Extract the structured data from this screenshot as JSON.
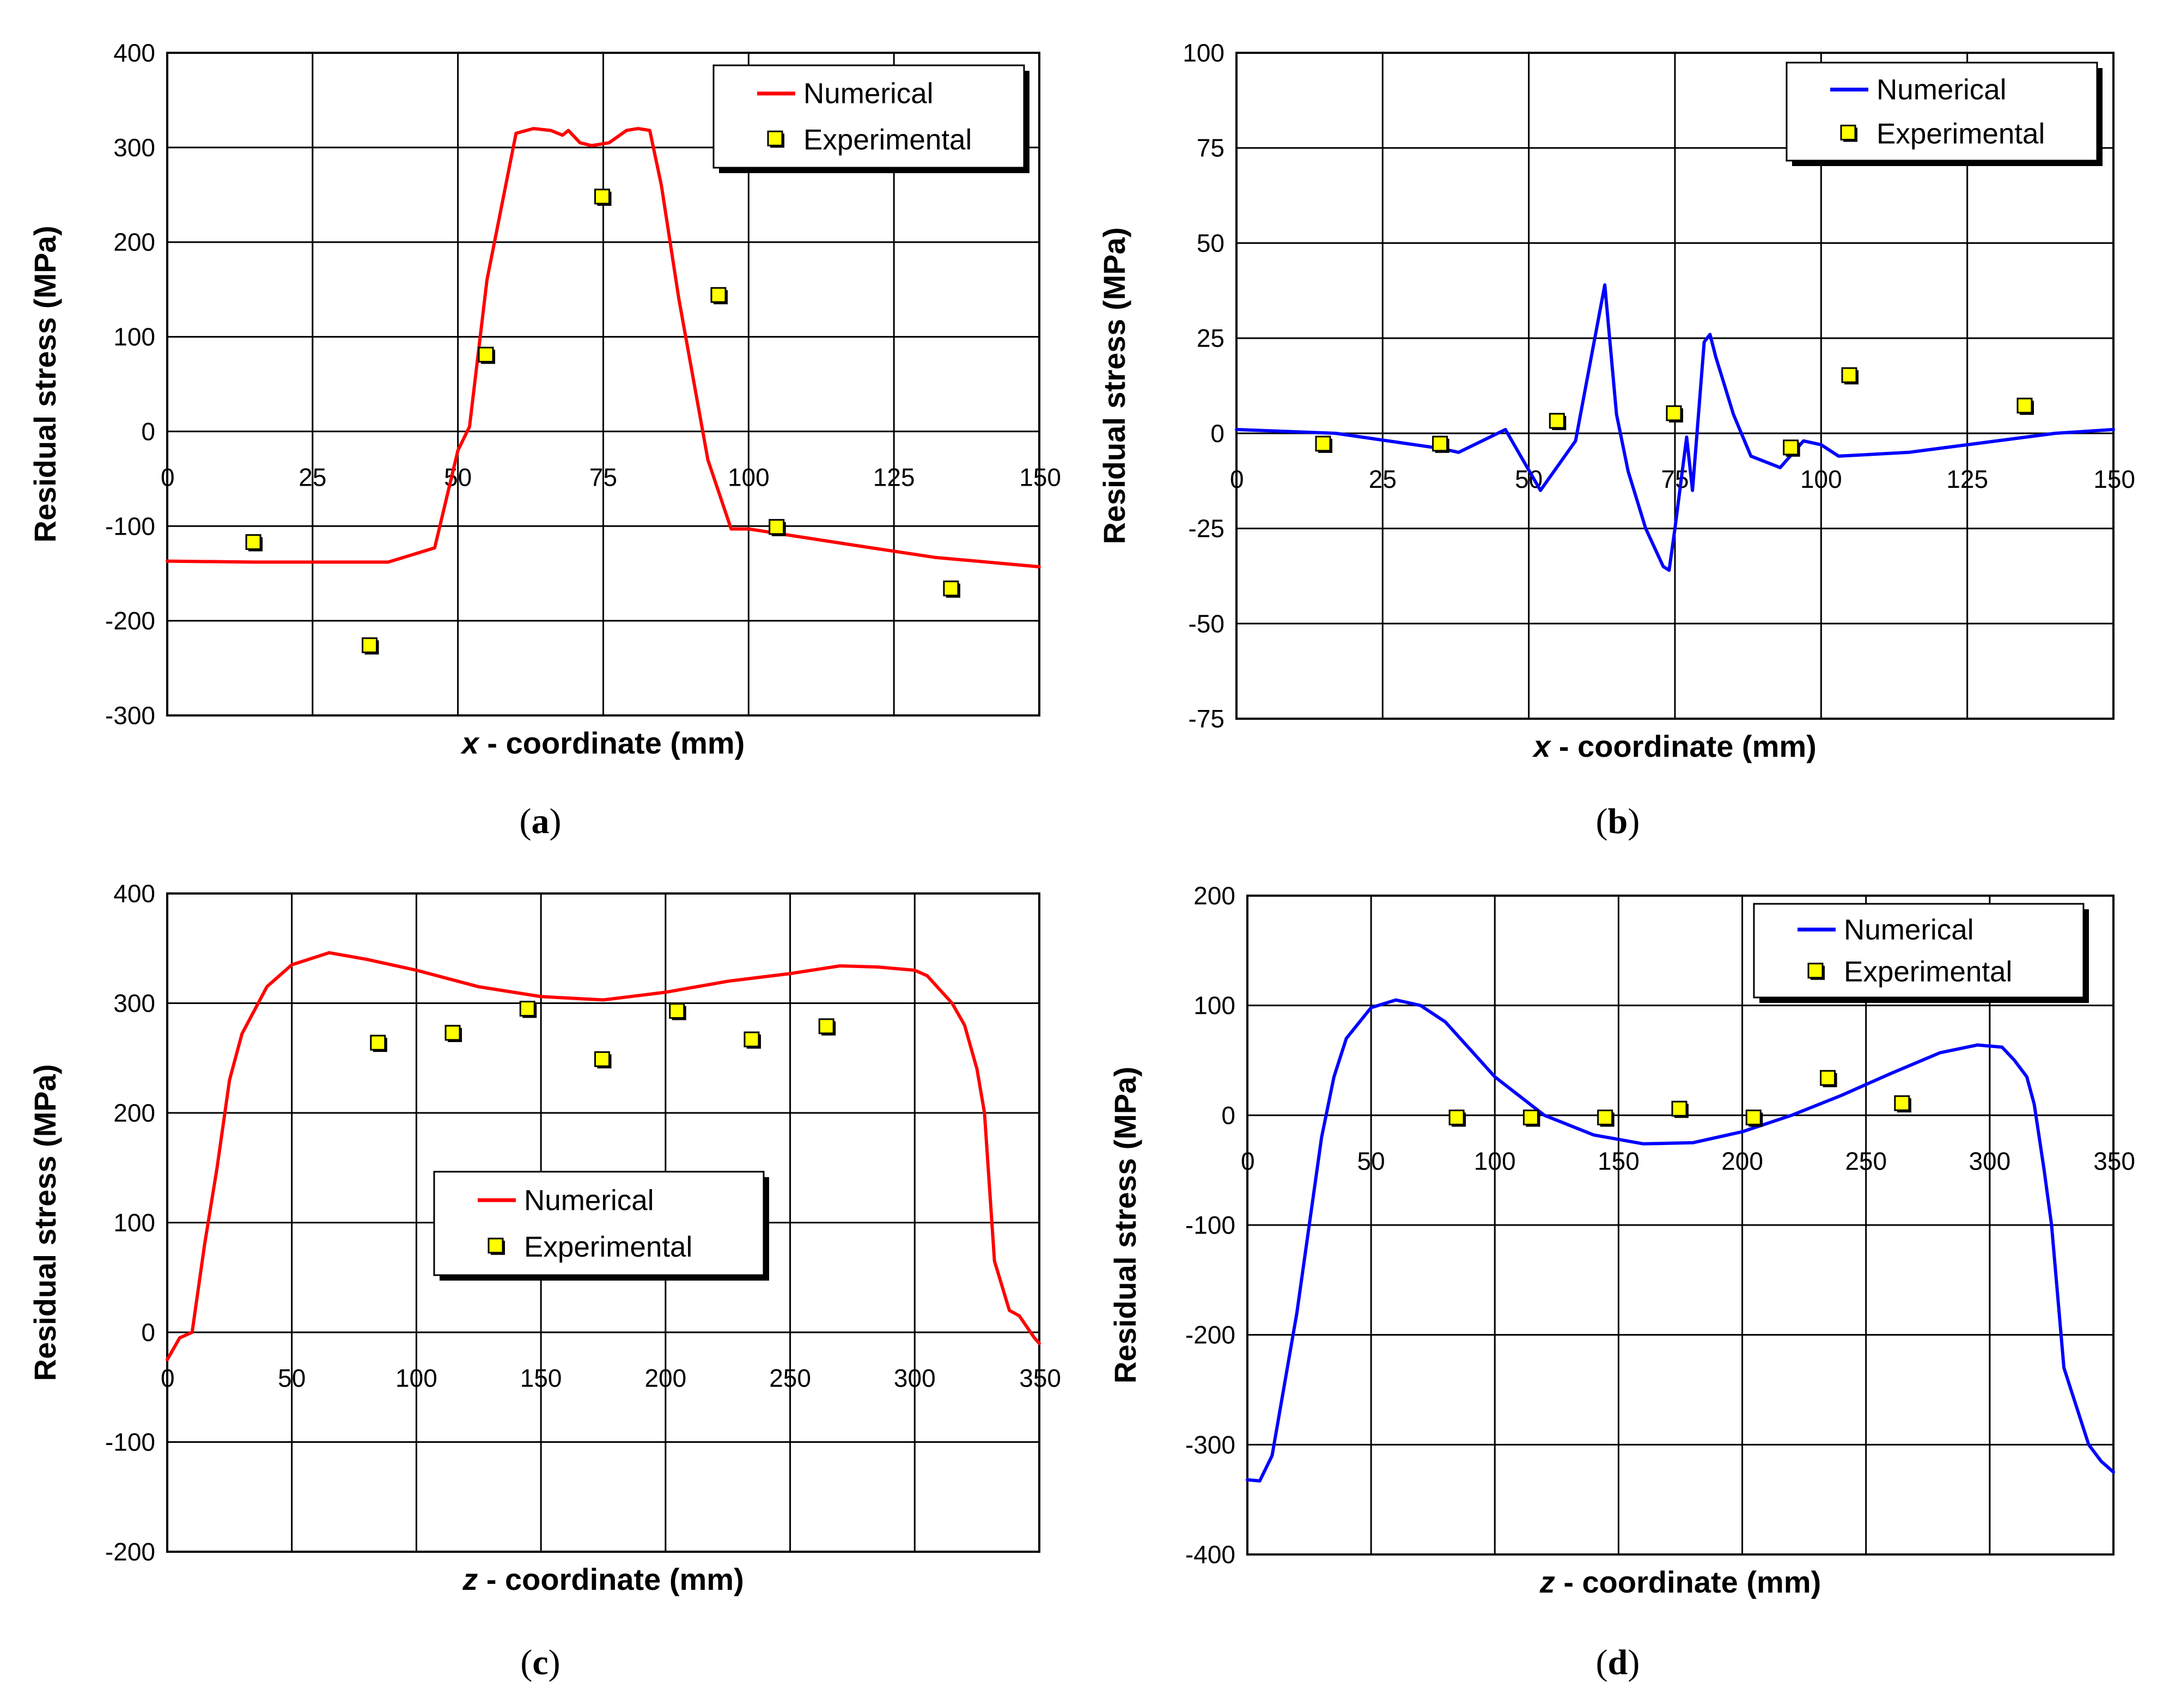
{
  "chart_data": [
    {
      "id": "a",
      "type": "line",
      "caption": "a",
      "xvar": "x",
      "xlabel": " - coordinate (mm)",
      "ylabel": "Residual stress (MPa)",
      "xlim": [
        0,
        150
      ],
      "ylim": [
        -300,
        400
      ],
      "xticks": [
        0,
        25,
        50,
        75,
        100,
        125,
        150
      ],
      "yticks": [
        -300,
        -200,
        -100,
        0,
        100,
        200,
        300,
        400
      ],
      "grid": true,
      "legend_position": "top-right",
      "numerical_color": "#ff0000",
      "marker_color": "#ffff00",
      "series": [
        {
          "name": "Numerical",
          "kind": "line",
          "x": [
            0,
            15,
            25,
            38,
            46,
            50,
            52,
            55,
            60,
            63,
            66,
            68,
            69,
            71,
            73,
            76,
            79,
            81,
            82,
            83,
            85,
            88,
            93,
            97,
            100,
            118,
            132,
            150
          ],
          "y": [
            -137,
            -138,
            -138,
            -138,
            -123,
            -20,
            5,
            160,
            315,
            320,
            318,
            313,
            318,
            305,
            302,
            305,
            318,
            320,
            319,
            318,
            260,
            140,
            -30,
            -103,
            -103,
            -120,
            -133,
            -143
          ]
        },
        {
          "name": "Experimental",
          "kind": "scatter",
          "x": [
            15,
            35,
            55,
            75,
            95,
            105,
            135
          ],
          "y": [
            -118,
            -227,
            80,
            247,
            143,
            -102,
            -167
          ]
        }
      ]
    },
    {
      "id": "b",
      "type": "line",
      "caption": "b",
      "xvar": "x",
      "xlabel": " - coordinate (mm)",
      "ylabel": "Residual stress (MPa)",
      "xlim": [
        0,
        150
      ],
      "ylim": [
        -75,
        100
      ],
      "xticks": [
        0,
        25,
        50,
        75,
        100,
        125,
        150
      ],
      "yticks": [
        -75,
        -50,
        -25,
        0,
        25,
        50,
        75,
        100
      ],
      "grid": true,
      "legend_position": "top-right",
      "numerical_color": "#0000ff",
      "marker_color": "#ffff00",
      "series": [
        {
          "name": "Numerical",
          "kind": "line",
          "x": [
            0,
            17,
            35,
            38,
            46,
            52,
            58,
            63,
            65,
            67,
            70,
            73,
            74,
            75,
            77,
            78,
            80,
            81,
            82,
            83,
            85,
            88,
            93,
            97,
            100,
            103,
            115,
            140,
            150
          ],
          "y": [
            1,
            0,
            -4,
            -5,
            1,
            -15,
            -2,
            39,
            5,
            -10,
            -25,
            -35,
            -36,
            -25,
            -1,
            -15,
            24,
            26,
            20,
            15,
            5,
            -6,
            -9,
            -2,
            -3,
            -6,
            -5,
            0,
            1
          ]
        },
        {
          "name": "Experimental",
          "kind": "scatter",
          "x": [
            15,
            35,
            55,
            75,
            95,
            105,
            135
          ],
          "y": [
            -3,
            -3,
            3,
            5,
            -4,
            15,
            7
          ]
        }
      ]
    },
    {
      "id": "c",
      "type": "line",
      "caption": "c",
      "xvar": "z",
      "xlabel": " - coordinate (mm)",
      "ylabel": "Residual stress (MPa)",
      "xlim": [
        0,
        350
      ],
      "ylim": [
        -200,
        400
      ],
      "xticks": [
        0,
        50,
        100,
        150,
        200,
        250,
        300,
        350
      ],
      "yticks": [
        -200,
        -100,
        0,
        100,
        200,
        300,
        400
      ],
      "grid": true,
      "legend_position": "center",
      "numerical_color": "#ff0000",
      "marker_color": "#ffff00",
      "series": [
        {
          "name": "Numerical",
          "kind": "line",
          "x": [
            0,
            5,
            10,
            15,
            20,
            25,
            30,
            40,
            50,
            65,
            80,
            100,
            125,
            150,
            175,
            200,
            225,
            250,
            270,
            285,
            300,
            305,
            315,
            320,
            325,
            328,
            332,
            338,
            342,
            348,
            350
          ],
          "y": [
            -25,
            -5,
            0,
            80,
            150,
            230,
            272,
            315,
            335,
            346,
            340,
            330,
            315,
            306,
            303,
            310,
            320,
            327,
            334,
            333,
            330,
            325,
            300,
            280,
            240,
            200,
            65,
            20,
            15,
            -5,
            -10
          ]
        },
        {
          "name": "Experimental",
          "kind": "scatter",
          "x": [
            85,
            115,
            145,
            175,
            205,
            235,
            265
          ],
          "y": [
            263,
            272,
            294,
            248,
            292,
            266,
            278
          ]
        }
      ]
    },
    {
      "id": "d",
      "type": "line",
      "caption": "d",
      "xvar": "z",
      "xlabel": " - coordinate (mm)",
      "ylabel": "Residual stress (MPa)",
      "xlim": [
        0,
        350
      ],
      "ylim": [
        -400,
        200
      ],
      "xticks": [
        0,
        50,
        100,
        150,
        200,
        250,
        300,
        350
      ],
      "yticks": [
        -400,
        -300,
        -200,
        -100,
        0,
        100,
        200
      ],
      "grid": true,
      "legend_position": "top-right",
      "numerical_color": "#0000ff",
      "marker_color": "#ffff00",
      "series": [
        {
          "name": "Numerical",
          "kind": "line",
          "x": [
            0,
            5,
            10,
            20,
            25,
            30,
            35,
            40,
            50,
            60,
            70,
            80,
            90,
            100,
            120,
            140,
            160,
            180,
            200,
            220,
            240,
            260,
            280,
            295,
            305,
            310,
            315,
            318,
            322,
            325,
            330,
            340,
            345,
            350
          ],
          "y": [
            -332,
            -333,
            -310,
            -180,
            -100,
            -20,
            35,
            70,
            98,
            105,
            100,
            85,
            60,
            35,
            0,
            -18,
            -26,
            -25,
            -15,
            0,
            18,
            38,
            57,
            64,
            62,
            50,
            35,
            10,
            -50,
            -100,
            -230,
            -300,
            -315,
            -325
          ]
        },
        {
          "name": "Experimental",
          "kind": "scatter",
          "x": [
            85,
            115,
            145,
            175,
            205,
            235,
            265
          ],
          "y": [
            -3,
            -3,
            -3,
            5,
            -3,
            33,
            10
          ]
        }
      ]
    }
  ]
}
